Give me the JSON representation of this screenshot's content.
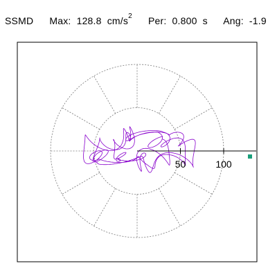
{
  "header": {
    "label": "SSMD",
    "max_label": "Max:",
    "max_value": "128.8",
    "max_unit": "cm/s",
    "max_unit_exp": "2",
    "per_label": "Per:",
    "per_value": "0.800",
    "per_unit": "s",
    "ang_label": "Ang:",
    "ang_value": "-1.9"
  },
  "colors": {
    "trace": "#8800cc",
    "peak_marker": "#1a9f7a",
    "grid": "#777777",
    "axis": "#000000",
    "frame": "#000000"
  },
  "chart_data": {
    "type": "polar-orbit",
    "radial_ticks": [
      50,
      100
    ],
    "ring_values": [
      50,
      100
    ],
    "spoke_angles_deg": [
      0,
      30,
      60,
      90,
      120,
      150,
      180,
      210,
      240,
      270,
      300,
      330
    ],
    "peak": {
      "magnitude": 128.8,
      "angle_deg": -1.9
    },
    "orbit": {
      "components": [
        {
          "ax": 110,
          "ay": 4,
          "fx": 1,
          "fy": 3,
          "px": 0.0,
          "py": 0.4
        },
        {
          "ax": 10,
          "ay": 40,
          "fx": 2,
          "fy": 1,
          "px": 1.1,
          "py": 0.2
        },
        {
          "ax": 22,
          "ay": 16,
          "fx": 5,
          "fy": 7,
          "px": 2.0,
          "py": 1.3
        },
        {
          "ax": 9,
          "ay": 12,
          "fx": 11,
          "fy": 9,
          "px": 0.7,
          "py": 2.6
        }
      ],
      "samples": 1400
    }
  }
}
